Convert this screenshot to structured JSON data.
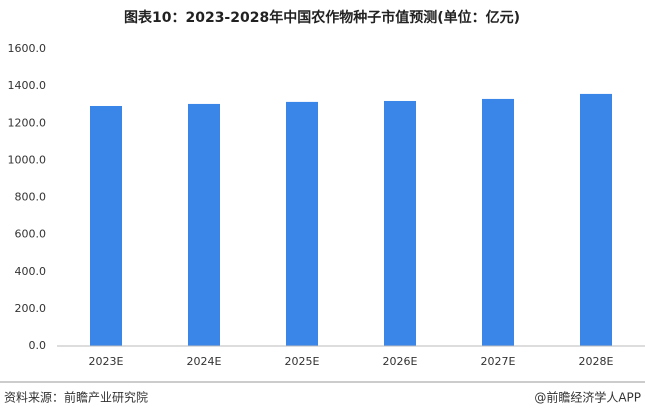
{
  "chart_data": {
    "type": "bar",
    "title": "图表10：2023-2028年中国农作物种子市值预测(单位：亿元)",
    "categories": [
      "2023E",
      "2024E",
      "2025E",
      "2026E",
      "2027E",
      "2028E"
    ],
    "values": [
      1293,
      1304,
      1315,
      1320,
      1331,
      1358
    ],
    "color": "#3a86e8",
    "ylim": [
      0,
      1600
    ],
    "yticks": [
      {
        "value": 0,
        "label": "0.0"
      },
      {
        "value": 200,
        "label": "200.0"
      },
      {
        "value": 400,
        "label": "400.0"
      },
      {
        "value": 600,
        "label": "600.0"
      },
      {
        "value": 800,
        "label": "800.0"
      },
      {
        "value": 1000,
        "label": "1000.0"
      },
      {
        "value": 1200,
        "label": "1200.0"
      },
      {
        "value": 1400,
        "label": "1400.0"
      },
      {
        "value": 1600,
        "label": "1600.0"
      }
    ],
    "grid": false,
    "source": "资料来源：前瞻产业研究院",
    "credit": "@前瞻经济学人APP"
  }
}
